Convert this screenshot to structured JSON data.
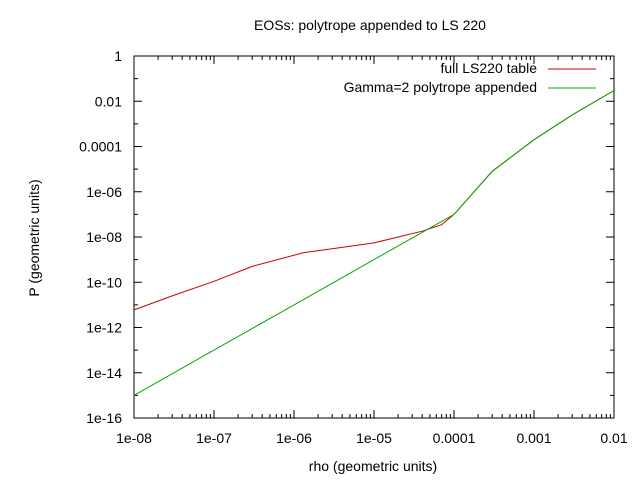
{
  "chart_data": {
    "type": "line",
    "title": "EOSs: polytrope appended to LS 220",
    "xlabel": "rho (geometric units)",
    "ylabel": "P (geometric units)",
    "xscale": "log",
    "yscale": "log",
    "xlim": [
      1e-08,
      0.01
    ],
    "ylim": [
      1e-16,
      1
    ],
    "x_ticks": [
      1e-08,
      1e-07,
      1e-06,
      1e-05,
      0.0001,
      0.001,
      0.01
    ],
    "x_tick_labels": [
      "1e-08",
      "1e-07",
      "1e-06",
      "1e-05",
      "0.0001",
      "0.001",
      "0.01"
    ],
    "y_ticks": [
      1e-16,
      1e-14,
      1e-12,
      1e-10,
      1e-08,
      1e-06,
      0.0001,
      0.01,
      1
    ],
    "y_tick_labels": [
      "1e-16",
      "1e-14",
      "1e-12",
      "1e-10",
      "1e-08",
      "1e-06",
      "0.0001",
      "0.01",
      "1"
    ],
    "grid": false,
    "legend_position": "top-right",
    "series": [
      {
        "name": "full LS220 table",
        "color": "#cc0000",
        "x": [
          1e-08,
          3e-08,
          1e-07,
          3e-07,
          1.3e-06,
          3e-06,
          1e-05,
          2e-05,
          4e-05,
          7e-05,
          0.0001,
          0.0003,
          0.001,
          0.003,
          0.01
        ],
        "y": [
          6e-12,
          2.5e-11,
          1.1e-10,
          5e-10,
          2e-09,
          3e-09,
          5.5e-09,
          1e-08,
          1.8e-08,
          3.5e-08,
          1e-07,
          8e-06,
          0.0002,
          0.0025,
          0.03
        ]
      },
      {
        "name": "Gamma=2 polytrope appended",
        "color": "#00aa00",
        "x": [
          1e-08,
          1e-07,
          1e-06,
          1e-05,
          7e-05,
          0.0001,
          0.0003,
          0.001,
          0.003,
          0.01
        ],
        "y": [
          1e-15,
          1e-13,
          1e-11,
          1e-09,
          4.9e-08,
          1e-07,
          8e-06,
          0.0002,
          0.0025,
          0.03
        ]
      }
    ]
  }
}
